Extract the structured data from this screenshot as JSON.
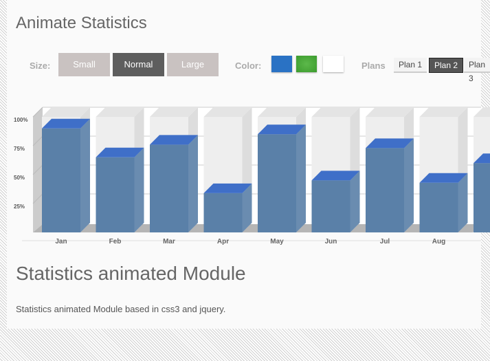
{
  "title": "Animate Statistics",
  "size": {
    "label": "Size:",
    "options": [
      "Small",
      "Normal",
      "Large"
    ],
    "selected": 1
  },
  "color": {
    "label": "Color:",
    "swatches": [
      "#2a72c4",
      "#3c9c2e",
      "#ffffff"
    ]
  },
  "plans": {
    "label": "Plans",
    "options": [
      "Plan 1",
      "Plan 2",
      "Plan 3"
    ],
    "selected": 1
  },
  "chart_data": {
    "type": "bar",
    "categories": [
      "Jan",
      "Feb",
      "Mar",
      "Apr",
      "May",
      "Jun",
      "Jul",
      "Aug"
    ],
    "values": [
      90,
      65,
      76,
      34,
      85,
      45,
      73,
      43
    ],
    "yticks": [
      "100%",
      "75%",
      "50%",
      "25%"
    ],
    "ylim": [
      0,
      100
    ],
    "bar_color": "#5a80a8",
    "top_color": "#3f6fc8"
  },
  "section_title": "Statistics animated Module",
  "description": "Statistics animated Module based in css3 and jquery."
}
